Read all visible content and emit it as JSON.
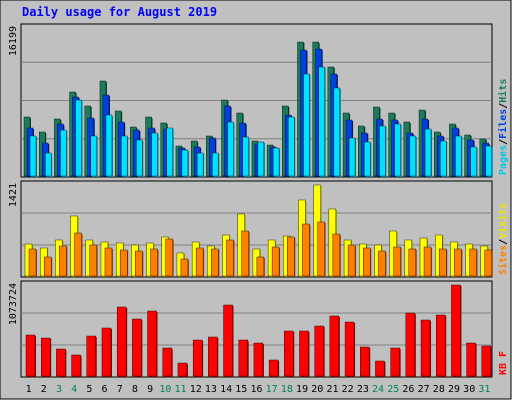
{
  "title": "Daily usage for August 2019",
  "colors": {
    "background": "#c0c0c0",
    "plot_bg": "#c0c0c0",
    "title": "#0000ff",
    "hits": "#1b7b5b",
    "files": "#0040e0",
    "pages": "#00e0ff",
    "visits": "#ffff00",
    "sites": "#ff8000",
    "kbytes": "#ff0000",
    "weekend_label": "#00805c",
    "weekday_label": "#000000",
    "separator": "#000000"
  },
  "chart_data": [
    {
      "type": "bar",
      "panel": "hits-files-pages",
      "ymax_label": "16199",
      "ylim": [
        0,
        16199
      ],
      "legend": [
        {
          "text": "Pages",
          "color": "#00c8e8"
        },
        {
          "text": "/",
          "color": "#000000"
        },
        {
          "text": "Files",
          "color": "#0040e0"
        },
        {
          "text": "/",
          "color": "#000000"
        },
        {
          "text": "Hits",
          "color": "#1b7b5b"
        }
      ],
      "categories": [
        "1",
        "2",
        "3",
        "4",
        "5",
        "6",
        "7",
        "8",
        "9",
        "10",
        "11",
        "12",
        "13",
        "14",
        "15",
        "16",
        "17",
        "18",
        "19",
        "20",
        "21",
        "22",
        "23",
        "24",
        "25",
        "26",
        "27",
        "28",
        "29",
        "30",
        "31"
      ],
      "series": [
        {
          "name": "Hits",
          "values": [
            6400,
            4800,
            6200,
            9100,
            7600,
            10300,
            7100,
            5300,
            6400,
            5800,
            3300,
            3800,
            4400,
            8300,
            6900,
            3800,
            3400,
            7600,
            14600,
            14600,
            11800,
            6800,
            5400,
            7500,
            6800,
            5900,
            7200,
            4800,
            5700,
            4500,
            4000
          ]
        },
        {
          "name": "Files",
          "values": [
            5200,
            3600,
            5700,
            8600,
            6300,
            8800,
            5900,
            5000,
            5200,
            5100,
            3000,
            3200,
            4100,
            7600,
            5800,
            3500,
            3100,
            6600,
            13700,
            13800,
            11100,
            6100,
            4700,
            6200,
            6100,
            4700,
            6200,
            4300,
            5200,
            3900,
            3600
          ]
        },
        {
          "name": "Pages",
          "values": [
            4300,
            2500,
            5000,
            8300,
            4400,
            6600,
            4300,
            3900,
            4700,
            5200,
            2800,
            2500,
            2500,
            5900,
            4200,
            3700,
            3000,
            6400,
            11100,
            11900,
            9600,
            4100,
            3700,
            5400,
            5700,
            4400,
            5100,
            3800,
            4300,
            3200,
            3300
          ]
        }
      ]
    },
    {
      "type": "bar",
      "panel": "visits-sites",
      "ymax_label": "1421",
      "ylim": [
        0,
        1421
      ],
      "legend": [
        {
          "text": "Sites",
          "color": "#ff8000"
        },
        {
          "text": "/",
          "color": "#000000"
        },
        {
          "text": "Visits",
          "color": "#e8e800"
        }
      ],
      "categories": [
        "1",
        "2",
        "3",
        "4",
        "5",
        "6",
        "7",
        "8",
        "9",
        "10",
        "11",
        "12",
        "13",
        "14",
        "15",
        "16",
        "17",
        "18",
        "19",
        "20",
        "21",
        "22",
        "23",
        "24",
        "25",
        "26",
        "27",
        "28",
        "29",
        "30",
        "31"
      ],
      "series": [
        {
          "name": "Visits",
          "values": [
            490,
            440,
            560,
            930,
            560,
            520,
            510,
            480,
            510,
            600,
            350,
            520,
            470,
            630,
            950,
            420,
            560,
            620,
            1170,
            1410,
            1040,
            550,
            500,
            480,
            690,
            560,
            580,
            630,
            520,
            500,
            460
          ]
        },
        {
          "name": "Sites",
          "values": [
            410,
            300,
            470,
            670,
            480,
            440,
            400,
            380,
            420,
            570,
            270,
            430,
            420,
            550,
            690,
            300,
            450,
            600,
            800,
            840,
            650,
            480,
            430,
            380,
            450,
            420,
            450,
            410,
            410,
            420,
            400
          ]
        }
      ]
    },
    {
      "type": "bar",
      "panel": "kbytes",
      "ymax_label": "1073724",
      "ylim": [
        0,
        1073724
      ],
      "legend": [
        {
          "text": "KB F",
          "color": "#ff0000"
        }
      ],
      "categories": [
        "1",
        "2",
        "3",
        "4",
        "5",
        "6",
        "7",
        "8",
        "9",
        "10",
        "11",
        "12",
        "13",
        "14",
        "15",
        "16",
        "17",
        "18",
        "19",
        "20",
        "21",
        "22",
        "23",
        "24",
        "25",
        "26",
        "27",
        "28",
        "29",
        "30",
        "31"
      ],
      "series": [
        {
          "name": "KB F",
          "values": [
            480000,
            440000,
            320000,
            250000,
            470000,
            560000,
            800000,
            660000,
            760000,
            330000,
            150000,
            420000,
            450000,
            830000,
            420000,
            390000,
            190000,
            530000,
            520000,
            580000,
            700000,
            630000,
            340000,
            170000,
            330000,
            740000,
            650000,
            710000,
            1060000,
            380000,
            350000
          ]
        }
      ]
    }
  ],
  "weekend_days": [
    "3",
    "4",
    "10",
    "11",
    "17",
    "18",
    "24",
    "25",
    "31"
  ]
}
